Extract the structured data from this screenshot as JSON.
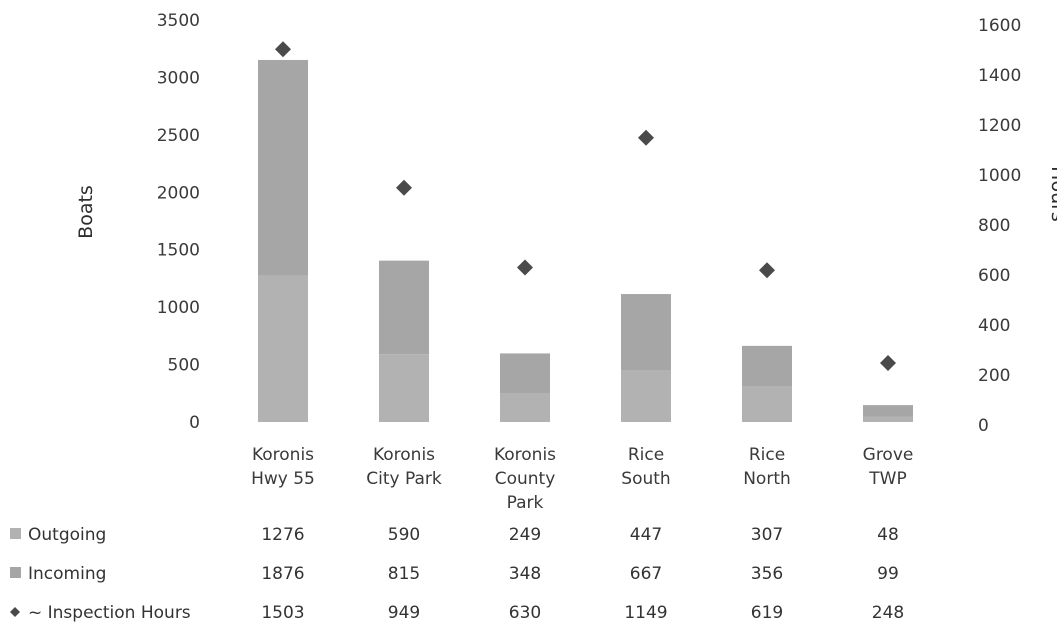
{
  "chart_data": {
    "type": "bar",
    "categories": [
      [
        "Koronis",
        "Hwy 55"
      ],
      [
        "Koronis",
        "City Park"
      ],
      [
        "Koronis",
        "County",
        "Park"
      ],
      [
        "Rice",
        "South"
      ],
      [
        "Rice",
        "North"
      ],
      [
        "Grove",
        "TWP"
      ]
    ],
    "stacked": true,
    "series": [
      {
        "name": "Outgoing",
        "axis": "left",
        "kind": "bar",
        "values": [
          1276,
          590,
          249,
          447,
          307,
          48
        ]
      },
      {
        "name": "Incoming",
        "axis": "left",
        "kind": "bar",
        "values": [
          1876,
          815,
          348,
          667,
          356,
          99
        ]
      },
      {
        "name": "~ Inspection Hours",
        "axis": "right",
        "kind": "marker",
        "values": [
          1503,
          949,
          630,
          1149,
          619,
          248
        ]
      }
    ],
    "ylabel": "Boats",
    "y2label": "Hours",
    "ylim": [
      0,
      3500
    ],
    "y2lim": [
      0,
      1600
    ],
    "yticks": [
      "0",
      "500",
      "1000",
      "1500",
      "2000",
      "2500",
      "3000",
      "3500"
    ],
    "y2ticks": [
      "0",
      "200",
      "400",
      "600",
      "800",
      "1000",
      "1200",
      "1400",
      "1600"
    ],
    "data_table": true,
    "colors": {
      "outgoing": "#b2b2b2",
      "incoming": "#a6a6a6",
      "marker": "#4a4a4a",
      "text": "#333333"
    }
  }
}
